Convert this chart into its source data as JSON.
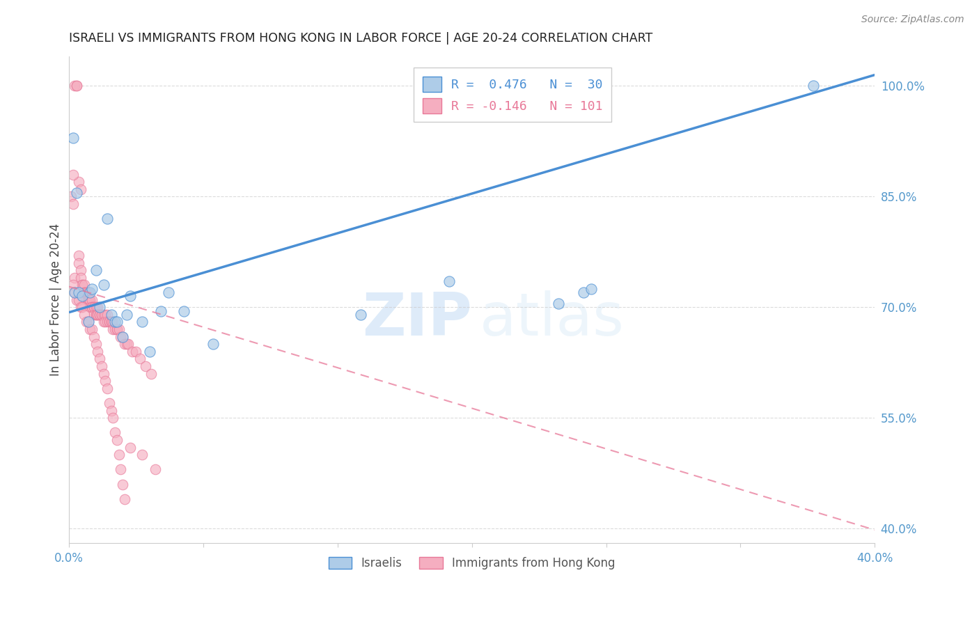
{
  "title": "ISRAELI VS IMMIGRANTS FROM HONG KONG IN LABOR FORCE | AGE 20-24 CORRELATION CHART",
  "source": "Source: ZipAtlas.com",
  "ylabel": "In Labor Force | Age 20-24",
  "watermark_zip": "ZIP",
  "watermark_atlas": "atlas",
  "xlim": [
    0.0,
    0.42
  ],
  "ylim": [
    0.38,
    1.04
  ],
  "yticks": [
    0.4,
    0.55,
    0.7,
    0.85,
    1.0
  ],
  "xticks": [
    0.0,
    0.07,
    0.14,
    0.21,
    0.28,
    0.35,
    0.42
  ],
  "right_ytick_labels": [
    "40.0%",
    "55.0%",
    "70.0%",
    "85.0%",
    "100.0%"
  ],
  "israelis_color": "#aecce8",
  "hk_color": "#f5aec0",
  "blue_line_color": "#4a8fd4",
  "pink_line_color": "#e87898",
  "axis_color": "#5599cc",
  "grid_color": "#cccccc",
  "israelis_x": [
    0.002,
    0.003,
    0.004,
    0.005,
    0.007,
    0.01,
    0.011,
    0.012,
    0.014,
    0.016,
    0.018,
    0.02,
    0.022,
    0.024,
    0.025,
    0.028,
    0.03,
    0.032,
    0.038,
    0.042,
    0.048,
    0.052,
    0.06,
    0.075,
    0.152,
    0.198,
    0.255,
    0.268,
    0.272,
    0.388
  ],
  "israelis_y": [
    0.93,
    0.72,
    0.855,
    0.72,
    0.715,
    0.68,
    0.72,
    0.725,
    0.75,
    0.7,
    0.73,
    0.82,
    0.69,
    0.68,
    0.68,
    0.66,
    0.69,
    0.715,
    0.68,
    0.64,
    0.695,
    0.72,
    0.695,
    0.65,
    0.69,
    0.735,
    0.705,
    0.72,
    0.725,
    1.0
  ],
  "hk_x": [
    0.003,
    0.004,
    0.004,
    0.005,
    0.006,
    0.001,
    0.002,
    0.002,
    0.003,
    0.005,
    0.005,
    0.006,
    0.006,
    0.007,
    0.007,
    0.008,
    0.008,
    0.008,
    0.009,
    0.009,
    0.009,
    0.01,
    0.01,
    0.01,
    0.01,
    0.011,
    0.011,
    0.011,
    0.012,
    0.012,
    0.012,
    0.013,
    0.013,
    0.013,
    0.014,
    0.014,
    0.014,
    0.015,
    0.015,
    0.015,
    0.016,
    0.016,
    0.017,
    0.017,
    0.018,
    0.018,
    0.019,
    0.019,
    0.02,
    0.02,
    0.021,
    0.021,
    0.022,
    0.022,
    0.023,
    0.023,
    0.024,
    0.025,
    0.025,
    0.026,
    0.027,
    0.028,
    0.029,
    0.03,
    0.031,
    0.033,
    0.035,
    0.037,
    0.04,
    0.043,
    0.002,
    0.003,
    0.004,
    0.005,
    0.006,
    0.007,
    0.008,
    0.009,
    0.01,
    0.011,
    0.012,
    0.013,
    0.014,
    0.015,
    0.016,
    0.017,
    0.018,
    0.019,
    0.02,
    0.021,
    0.022,
    0.023,
    0.024,
    0.025,
    0.026,
    0.027,
    0.028,
    0.029,
    0.032,
    0.038,
    0.045
  ],
  "hk_y": [
    1.0,
    1.0,
    1.0,
    0.87,
    0.86,
    0.85,
    0.84,
    0.88,
    0.74,
    0.77,
    0.76,
    0.75,
    0.74,
    0.73,
    0.73,
    0.73,
    0.72,
    0.72,
    0.72,
    0.72,
    0.71,
    0.72,
    0.71,
    0.71,
    0.71,
    0.71,
    0.71,
    0.7,
    0.71,
    0.7,
    0.7,
    0.7,
    0.7,
    0.69,
    0.7,
    0.69,
    0.69,
    0.7,
    0.69,
    0.69,
    0.69,
    0.69,
    0.69,
    0.69,
    0.69,
    0.68,
    0.69,
    0.68,
    0.69,
    0.68,
    0.68,
    0.68,
    0.68,
    0.68,
    0.68,
    0.67,
    0.67,
    0.67,
    0.67,
    0.67,
    0.66,
    0.66,
    0.65,
    0.65,
    0.65,
    0.64,
    0.64,
    0.63,
    0.62,
    0.61,
    0.73,
    0.72,
    0.71,
    0.71,
    0.7,
    0.7,
    0.69,
    0.68,
    0.68,
    0.67,
    0.67,
    0.66,
    0.65,
    0.64,
    0.63,
    0.62,
    0.61,
    0.6,
    0.59,
    0.57,
    0.56,
    0.55,
    0.53,
    0.52,
    0.5,
    0.48,
    0.46,
    0.44,
    0.51,
    0.5,
    0.48
  ],
  "blue_trendline_x": [
    0.0,
    0.42
  ],
  "blue_trendline_y": [
    0.693,
    1.015
  ],
  "pink_trendline_x": [
    0.0,
    0.42
  ],
  "pink_trendline_y": [
    0.728,
    0.398
  ]
}
